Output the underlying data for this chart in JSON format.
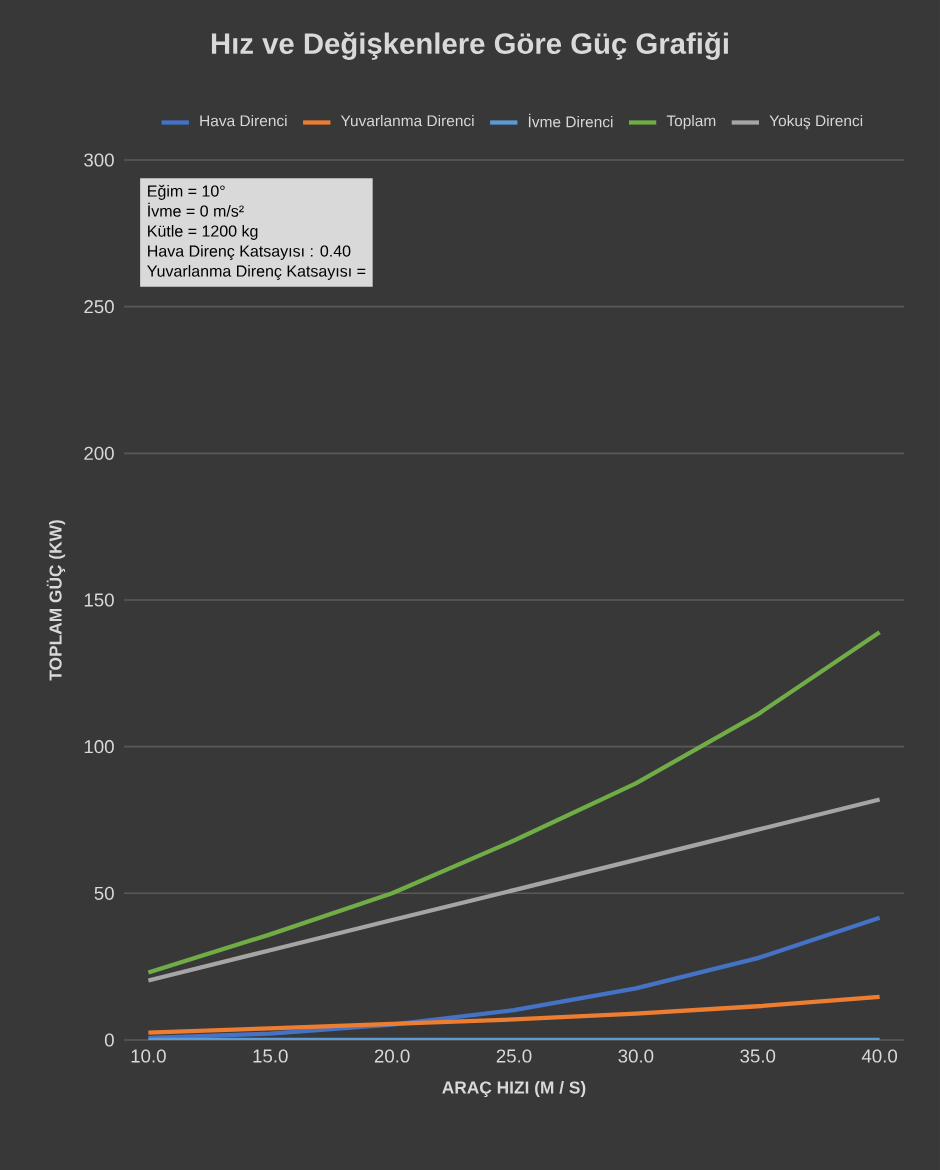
{
  "chart_data": {
    "type": "line",
    "title": "Hız ve Değişkenlere Göre Güç Grafiği",
    "xlabel": "ARAÇ HIZI (M / S)",
    "ylabel": "TOPLAM GÜÇ (KW)",
    "categories": [
      "10.0",
      "15.0",
      "20.0",
      "25.0",
      "30.0",
      "35.0",
      "40.0"
    ],
    "series": [
      {
        "name": "Hava Direnci",
        "color": "#4472c4",
        "values": [
          0.7,
          2.2,
          5.2,
          10.2,
          17.6,
          27.9,
          41.7
        ]
      },
      {
        "name": "Yuvarlanma Direnci",
        "color": "#ed7d31",
        "values": [
          2.5,
          4,
          5.5,
          7,
          9,
          11.5,
          14.7
        ]
      },
      {
        "name": "İvme Direnci",
        "color": "#5b9bd5",
        "values": [
          0,
          0,
          0,
          0,
          0,
          0,
          0
        ]
      },
      {
        "name": "Toplam",
        "color": "#70ad47",
        "values": [
          23,
          36,
          50,
          68,
          87.5,
          111,
          139
        ]
      },
      {
        "name": "Yokuş Direnci",
        "color": "#a5a5a5",
        "values": [
          20.3,
          30.6,
          40.9,
          51.1,
          61.4,
          71.7,
          82
        ]
      }
    ],
    "ylim": [
      0,
      300
    ],
    "yticks": [
      0,
      50,
      100,
      150,
      200,
      250,
      300
    ],
    "grid": "y",
    "legend": "top",
    "annotations": [
      "Eğim = 10°",
      "İvme = 0 m/s²",
      "Kütle = 1200 kg",
      "Hava Direnç Katsayısı : 0.40",
      "Yuvarlanma Direnç Katsayısı ="
    ]
  }
}
